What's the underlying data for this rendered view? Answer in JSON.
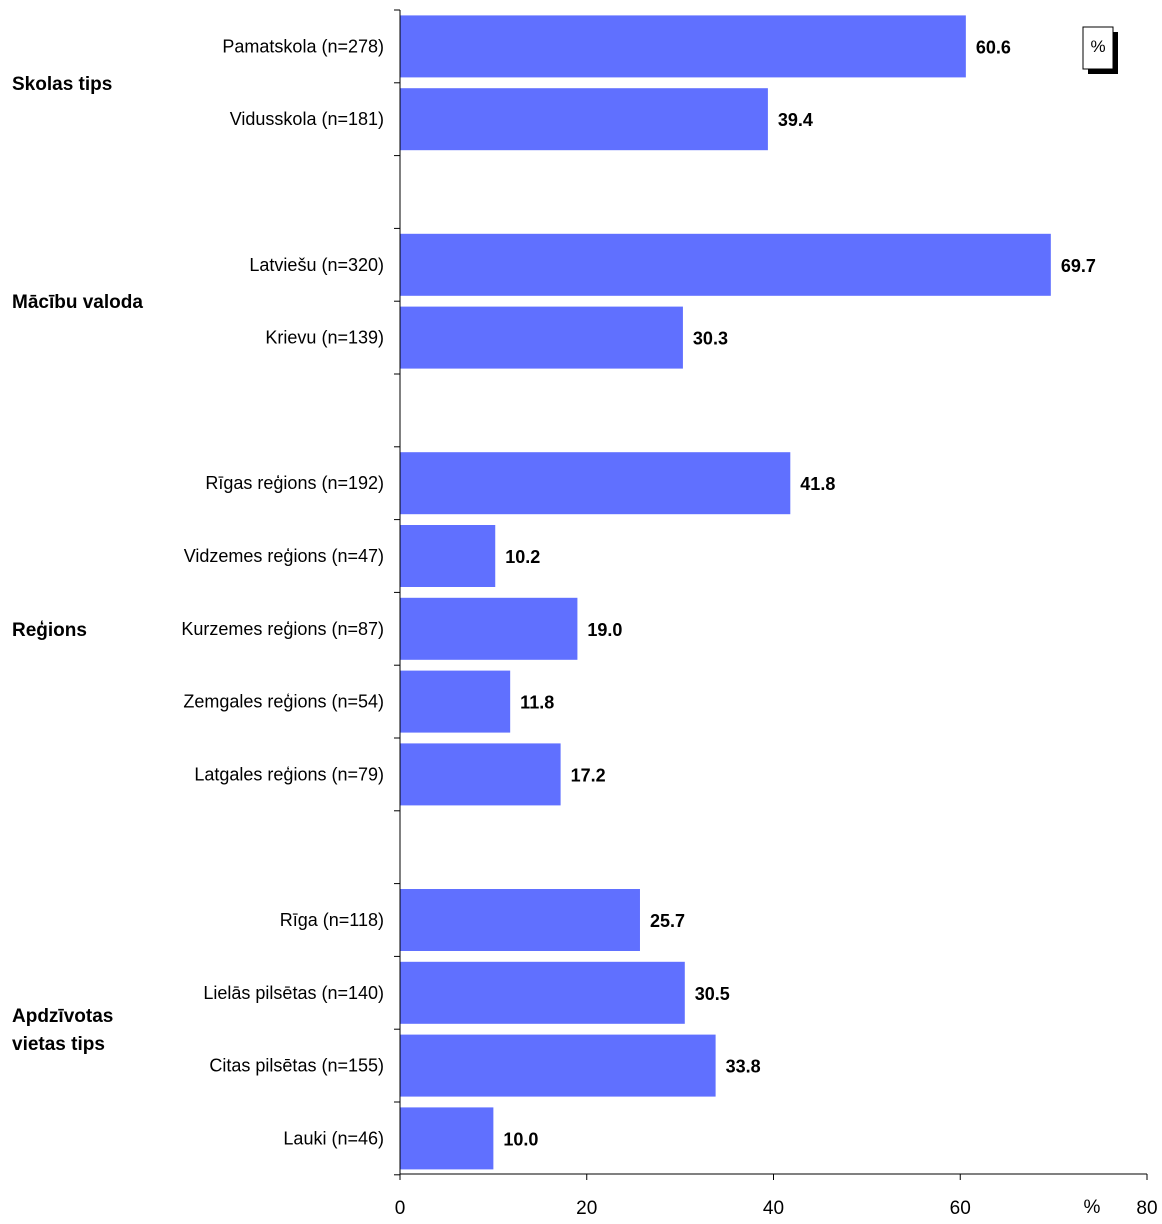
{
  "chart_data": {
    "type": "bar",
    "orientation": "horizontal",
    "xlim": [
      0,
      80
    ],
    "x_ticks": [
      "0",
      "20",
      "40",
      "60",
      "80"
    ],
    "x_unit_label": "%",
    "legend_label": "%",
    "legend_placement": "top-right",
    "grid": false,
    "bar_color": "#6070ff",
    "groups": [
      {
        "label_lines": [
          "Skolas tips"
        ],
        "categories": [
          "Pamatskola (n=278)",
          "Vidusskola (n=181)"
        ],
        "values": [
          60.6,
          39.4
        ],
        "value_labels": [
          "60.6",
          "39.4"
        ]
      },
      {
        "label_lines": [
          "Mācību valoda"
        ],
        "categories": [
          "Latviešu (n=320)",
          "Krievu (n=139)"
        ],
        "values": [
          69.7,
          30.3
        ],
        "value_labels": [
          "69.7",
          "30.3"
        ]
      },
      {
        "label_lines": [
          "Reģions"
        ],
        "categories": [
          "Rīgas reģions (n=192)",
          "Vidzemes reģions (n=47)",
          "Kurzemes reģions (n=87)",
          "Zemgales reģions (n=54)",
          "Latgales reģions (n=79)"
        ],
        "values": [
          41.8,
          10.2,
          19.0,
          11.8,
          17.2
        ],
        "value_labels": [
          "41.8",
          "10.2",
          "19.0",
          "11.8",
          "17.2"
        ]
      },
      {
        "label_lines": [
          "Apdzīvotas",
          "vietas tips"
        ],
        "categories": [
          "Rīga (n=118)",
          "Lielās pilsētas (n=140)",
          "Citas pilsētas (n=155)",
          "Lauki (n=46)"
        ],
        "values": [
          25.7,
          30.5,
          33.8,
          10.0
        ],
        "value_labels": [
          "25.7",
          "30.5",
          "33.8",
          "10.0"
        ]
      }
    ]
  }
}
